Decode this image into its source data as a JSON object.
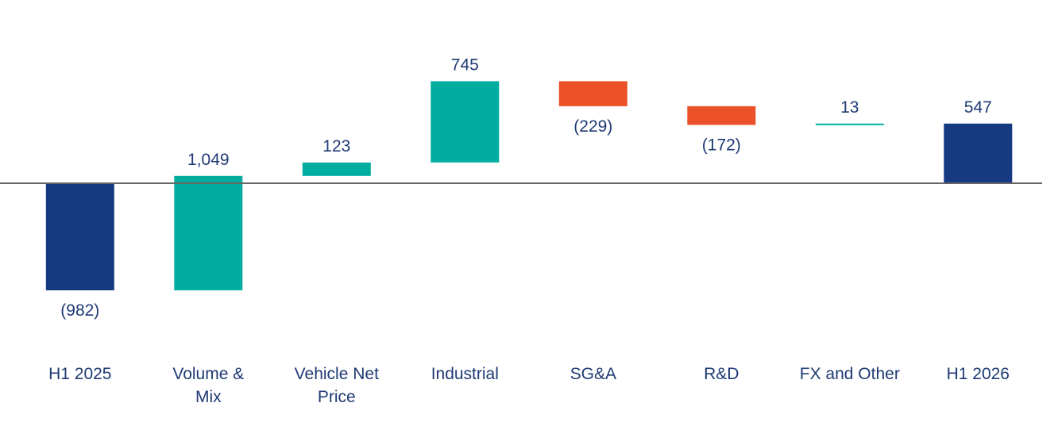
{
  "chart_data": {
    "type": "waterfall",
    "title": "",
    "xlabel": "",
    "ylabel": "",
    "categories": [
      [
        "H1 2025"
      ],
      [
        "Volume &",
        "Mix"
      ],
      [
        "Vehicle Net",
        "Price"
      ],
      [
        "Industrial"
      ],
      [
        "SG&A"
      ],
      [
        "R&D"
      ],
      [
        "FX and Other"
      ],
      [
        "H1 2026"
      ]
    ],
    "values": [
      -982,
      1049,
      123,
      745,
      -229,
      -172,
      13,
      547
    ],
    "bar_kinds": [
      "total",
      "delta",
      "delta",
      "delta",
      "delta",
      "delta",
      "delta",
      "total"
    ],
    "value_labels": [
      "(982)",
      "1,049",
      "123",
      "745",
      "(229)",
      "(172)",
      "13",
      "547"
    ],
    "ylim": [
      -1250,
      1300
    ],
    "zero_line": true,
    "colors": {
      "total": "#163a82",
      "increase": "#00ad9f",
      "decrease": "#ea5128",
      "axis": "#666666",
      "text": "#1f3a73"
    }
  }
}
